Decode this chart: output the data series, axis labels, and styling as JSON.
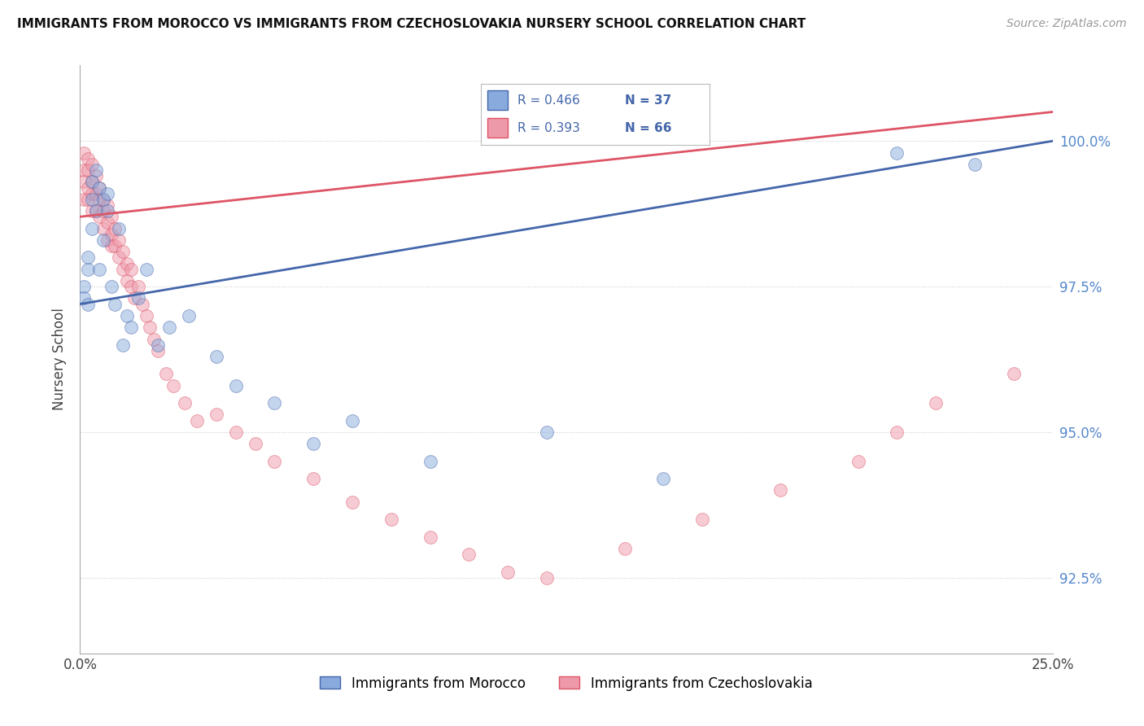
{
  "title": "IMMIGRANTS FROM MOROCCO VS IMMIGRANTS FROM CZECHOSLOVAKIA NURSERY SCHOOL CORRELATION CHART",
  "source": "Source: ZipAtlas.com",
  "ylabel": "Nursery School",
  "xmin": 0.0,
  "xmax": 0.25,
  "ymin": 91.2,
  "ymax": 101.3,
  "ytick_vals": [
    92.5,
    95.0,
    97.5,
    100.0
  ],
  "ytick_labels": [
    "92.5%",
    "95.0%",
    "97.5%",
    "100.0%"
  ],
  "legend_R_blue": "R = 0.466",
  "legend_N_blue": "N = 37",
  "legend_R_pink": "R = 0.393",
  "legend_N_pink": "N = 66",
  "color_blue": "#88AADD",
  "color_pink": "#EE99AA",
  "color_blue_line": "#4466AA",
  "color_pink_line": "#DD5566",
  "legend_label_blue": "Immigrants from Morocco",
  "legend_label_pink": "Immigrants from Czechoslovakia",
  "blue_line_x0": 0.0,
  "blue_line_y0": 97.2,
  "blue_line_x1": 0.25,
  "blue_line_y1": 100.0,
  "pink_line_x0": 0.0,
  "pink_line_y0": 98.7,
  "pink_line_x1": 0.25,
  "pink_line_y1": 100.5,
  "blue_scatter_x": [
    0.001,
    0.001,
    0.002,
    0.002,
    0.002,
    0.003,
    0.003,
    0.003,
    0.004,
    0.004,
    0.005,
    0.005,
    0.006,
    0.006,
    0.007,
    0.007,
    0.008,
    0.009,
    0.01,
    0.011,
    0.012,
    0.013,
    0.015,
    0.017,
    0.02,
    0.023,
    0.028,
    0.035,
    0.04,
    0.05,
    0.06,
    0.07,
    0.09,
    0.12,
    0.15,
    0.21,
    0.23
  ],
  "blue_scatter_y": [
    97.5,
    97.3,
    97.8,
    97.2,
    98.0,
    98.5,
    99.0,
    99.3,
    99.5,
    98.8,
    99.2,
    97.8,
    99.0,
    98.3,
    98.8,
    99.1,
    97.5,
    97.2,
    98.5,
    96.5,
    97.0,
    96.8,
    97.3,
    97.8,
    96.5,
    96.8,
    97.0,
    96.3,
    95.8,
    95.5,
    94.8,
    95.2,
    94.5,
    95.0,
    94.2,
    99.8,
    99.6
  ],
  "pink_scatter_x": [
    0.001,
    0.001,
    0.001,
    0.001,
    0.002,
    0.002,
    0.002,
    0.002,
    0.003,
    0.003,
    0.003,
    0.003,
    0.004,
    0.004,
    0.004,
    0.005,
    0.005,
    0.005,
    0.006,
    0.006,
    0.006,
    0.007,
    0.007,
    0.007,
    0.008,
    0.008,
    0.008,
    0.009,
    0.009,
    0.01,
    0.01,
    0.011,
    0.011,
    0.012,
    0.012,
    0.013,
    0.013,
    0.014,
    0.015,
    0.016,
    0.017,
    0.018,
    0.019,
    0.02,
    0.022,
    0.024,
    0.027,
    0.03,
    0.035,
    0.04,
    0.045,
    0.05,
    0.06,
    0.07,
    0.08,
    0.09,
    0.1,
    0.11,
    0.12,
    0.14,
    0.16,
    0.18,
    0.2,
    0.21,
    0.22,
    0.24
  ],
  "pink_scatter_y": [
    99.8,
    99.5,
    99.3,
    99.0,
    99.7,
    99.5,
    99.2,
    99.0,
    99.6,
    99.3,
    99.1,
    98.8,
    99.4,
    99.1,
    98.8,
    99.2,
    99.0,
    98.7,
    99.0,
    98.8,
    98.5,
    98.9,
    98.6,
    98.3,
    98.7,
    98.4,
    98.2,
    98.5,
    98.2,
    98.3,
    98.0,
    98.1,
    97.8,
    97.9,
    97.6,
    97.8,
    97.5,
    97.3,
    97.5,
    97.2,
    97.0,
    96.8,
    96.6,
    96.4,
    96.0,
    95.8,
    95.5,
    95.2,
    95.3,
    95.0,
    94.8,
    94.5,
    94.2,
    93.8,
    93.5,
    93.2,
    92.9,
    92.6,
    92.5,
    93.0,
    93.5,
    94.0,
    94.5,
    95.0,
    95.5,
    96.0
  ]
}
